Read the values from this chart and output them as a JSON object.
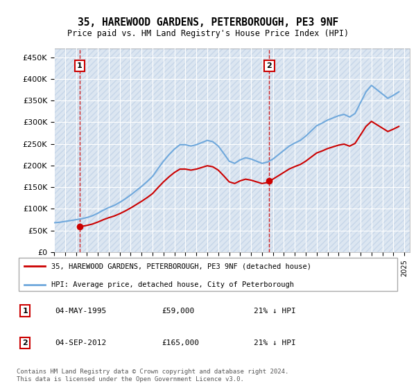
{
  "title": "35, HAREWOOD GARDENS, PETERBOROUGH, PE3 9NF",
  "subtitle": "Price paid vs. HM Land Registry's House Price Index (HPI)",
  "ylim": [
    0,
    470000
  ],
  "yticks": [
    0,
    50000,
    100000,
    150000,
    200000,
    250000,
    300000,
    350000,
    400000,
    450000
  ],
  "xlim_start": 1993.0,
  "xlim_end": 2025.5,
  "hpi_color": "#6fa8dc",
  "price_color": "#cc0000",
  "bg_color": "#dce6f1",
  "hatch_color": "#b8cce4",
  "t1_year": 1995.33,
  "t1_price": 59000,
  "t2_year": 2012.67,
  "t2_price": 165000,
  "legend_label_1": "35, HAREWOOD GARDENS, PETERBOROUGH, PE3 9NF (detached house)",
  "legend_label_2": "HPI: Average price, detached house, City of Peterborough",
  "footer_1": "Contains HM Land Registry data © Crown copyright and database right 2024.",
  "footer_2": "This data is licensed under the Open Government Licence v3.0.",
  "table_1_date": "04-MAY-1995",
  "table_1_price": "£59,000",
  "table_1_hpi": "21% ↓ HPI",
  "table_2_date": "04-SEP-2012",
  "table_2_price": "£165,000",
  "table_2_hpi": "21% ↓ HPI"
}
